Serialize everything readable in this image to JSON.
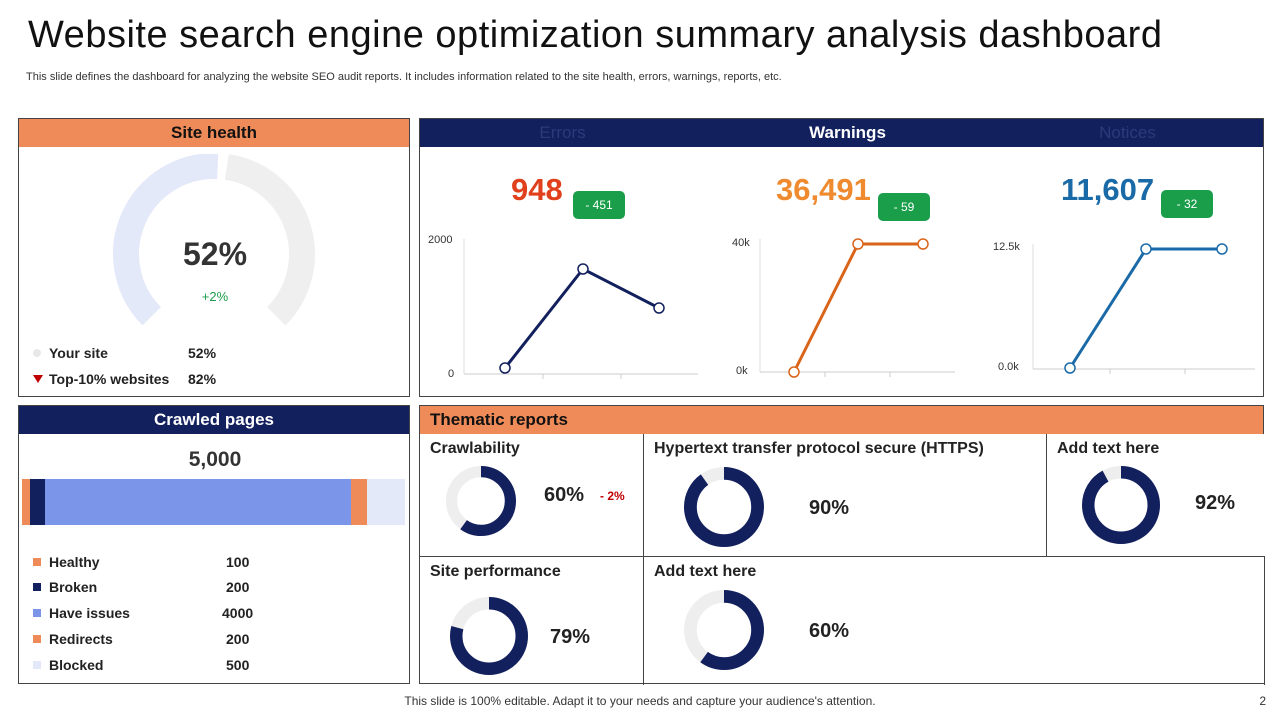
{
  "title": "Website search engine optimization summary analysis dashboard",
  "subtitle": "This slide defines the dashboard for analyzing the website SEO audit reports. It includes information related to the site health, errors, warnings, reports, etc.",
  "site_health": {
    "header": "Site health",
    "percent": "52%",
    "change": "+2%",
    "gauge_value": 0.52,
    "legend": [
      {
        "label": "Your site",
        "value": "52%"
      },
      {
        "label": "Top-10% websites",
        "value": "82%"
      }
    ],
    "colors": {
      "fill": "#e4e9f9",
      "rest": "#efefef",
      "marker_top": "#c00000"
    }
  },
  "tabs": {
    "errors": "Errors",
    "warnings": "Warnings",
    "notices": "Notices"
  },
  "metrics": [
    {
      "name": "errors",
      "value": "948",
      "delta": "- 451",
      "color": "#e0401b",
      "line_color": "#13205e",
      "y_top": "2000",
      "y_bottom": "0"
    },
    {
      "name": "warnings",
      "value": "36,491",
      "delta": "- 59",
      "color": "#ef8a2f",
      "line_color": "#d9641a",
      "y_top": "40k",
      "y_bottom": "0k"
    },
    {
      "name": "notices",
      "value": "11,607",
      "delta": "- 32",
      "color": "#1a6aa8",
      "line_color": "#1a6aa8",
      "y_top": "12.5k",
      "y_bottom": "0.0k"
    }
  ],
  "crawled_pages": {
    "header": "Crawled pages",
    "total": "5,000",
    "items": [
      {
        "label": "Healthy",
        "value": "100",
        "count": 100,
        "color": "#ef8b59"
      },
      {
        "label": "Broken",
        "value": "200",
        "count": 200,
        "color": "#13205e"
      },
      {
        "label": "Have issues",
        "value": "4000",
        "count": 4000,
        "color": "#7b96e8"
      },
      {
        "label": "Redirects",
        "value": "200",
        "count": 200,
        "color": "#ef8b59"
      },
      {
        "label": "Blocked",
        "value": "500",
        "count": 500,
        "color": "#e4e9f9"
      }
    ]
  },
  "thematic": {
    "header": "Thematic reports",
    "cells": [
      {
        "label": "Crawlability",
        "percent": "60%",
        "value": 0.6,
        "change": "- 2%"
      },
      {
        "label": "Hypertext transfer protocol secure (HTTPS)",
        "percent": "90%",
        "value": 0.9
      },
      {
        "label": "Add text here",
        "percent": "92%",
        "value": 0.92
      },
      {
        "label": "Site performance",
        "percent": "79%",
        "value": 0.79
      },
      {
        "label": "Add text here",
        "percent": "60%",
        "value": 0.6
      }
    ],
    "colors": {
      "ring": "#13205e",
      "track": "#eeeeee",
      "change": "#c00000"
    }
  },
  "footer": "This slide is 100% editable. Adapt it to your needs and capture your audience's attention.",
  "page_number": "2"
}
